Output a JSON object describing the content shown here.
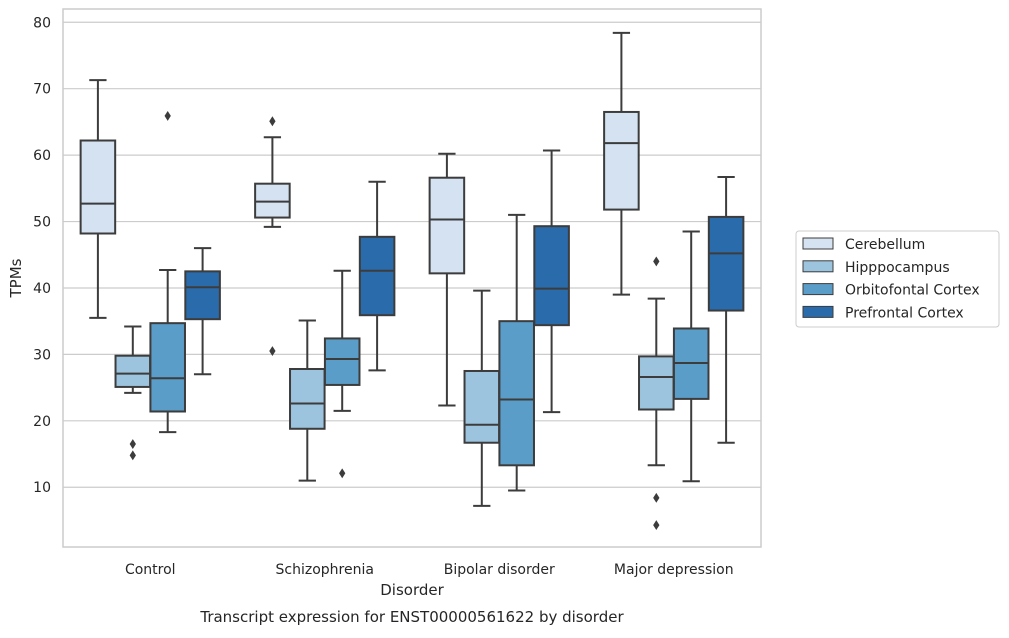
{
  "chart_data": {
    "type": "box",
    "caption": "Transcript expression for ENST00000561622 by disorder",
    "xlabel": "Disorder",
    "ylabel": "TPMs",
    "ylim": [
      1,
      82
    ],
    "yticks": [
      10,
      20,
      30,
      40,
      50,
      60,
      70,
      80
    ],
    "grid": "horizontal",
    "legend_position": "right",
    "categories": [
      "Control",
      "Schizophrenia",
      "Bipolar disorder",
      "Major depression"
    ],
    "series": [
      {
        "name": "Cerebellum",
        "color": "#d4e2f1",
        "boxes": [
          {
            "whislo": 35.5,
            "q1": 48.2,
            "med": 52.7,
            "q3": 62.2,
            "whishi": 71.3,
            "fliers": []
          },
          {
            "whislo": 49.2,
            "q1": 50.6,
            "med": 53.0,
            "q3": 55.7,
            "whishi": 62.7,
            "fliers": [
              30.5,
              65.1
            ]
          },
          {
            "whislo": 22.3,
            "q1": 42.2,
            "med": 50.3,
            "q3": 56.6,
            "whishi": 60.2,
            "fliers": []
          },
          {
            "whislo": 39.0,
            "q1": 51.8,
            "med": 61.8,
            "q3": 66.5,
            "whishi": 78.4,
            "fliers": []
          }
        ]
      },
      {
        "name": "Hipppocampus",
        "color": "#9cc4de",
        "boxes": [
          {
            "whislo": 24.2,
            "q1": 25.1,
            "med": 27.1,
            "q3": 29.8,
            "whishi": 34.2,
            "fliers": [
              16.5,
              14.8
            ]
          },
          {
            "whislo": 11.0,
            "q1": 18.8,
            "med": 22.6,
            "q3": 27.8,
            "whishi": 35.1,
            "fliers": []
          },
          {
            "whislo": 7.2,
            "q1": 16.7,
            "med": 19.4,
            "q3": 27.5,
            "whishi": 39.6,
            "fliers": []
          },
          {
            "whislo": 13.3,
            "q1": 21.7,
            "med": 26.6,
            "q3": 29.7,
            "whishi": 38.4,
            "fliers": [
              44.0,
              8.4,
              4.3
            ]
          }
        ]
      },
      {
        "name": "Orbitofontal Cortex",
        "color": "#5b9dc9",
        "boxes": [
          {
            "whislo": 18.3,
            "q1": 21.4,
            "med": 26.4,
            "q3": 34.7,
            "whishi": 42.7,
            "fliers": [
              65.9
            ]
          },
          {
            "whislo": 21.5,
            "q1": 25.4,
            "med": 29.3,
            "q3": 32.4,
            "whishi": 42.6,
            "fliers": [
              12.1
            ]
          },
          {
            "whislo": 9.5,
            "q1": 13.3,
            "med": 23.2,
            "q3": 35.0,
            "whishi": 51.0,
            "fliers": []
          },
          {
            "whislo": 10.9,
            "q1": 23.3,
            "med": 28.7,
            "q3": 33.9,
            "whishi": 48.5,
            "fliers": []
          }
        ]
      },
      {
        "name": "Prefrontal Cortex",
        "color": "#2a6bac",
        "boxes": [
          {
            "whislo": 27.0,
            "q1": 35.3,
            "med": 40.1,
            "q3": 42.5,
            "whishi": 46.0,
            "fliers": []
          },
          {
            "whislo": 27.6,
            "q1": 35.9,
            "med": 42.6,
            "q3": 47.7,
            "whishi": 56.0,
            "fliers": []
          },
          {
            "whislo": 21.3,
            "q1": 34.4,
            "med": 39.9,
            "q3": 49.3,
            "whishi": 60.7,
            "fliers": []
          },
          {
            "whislo": 16.7,
            "q1": 36.6,
            "med": 45.2,
            "q3": 50.7,
            "whishi": 56.7,
            "fliers": []
          }
        ]
      }
    ]
  }
}
